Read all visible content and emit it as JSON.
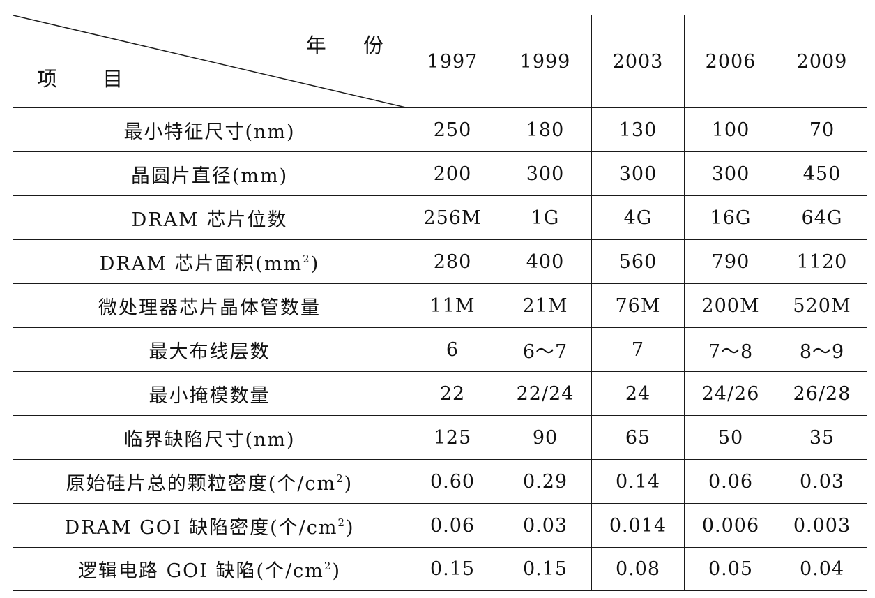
{
  "table": {
    "corner_top": "年 份",
    "corner_bottom": "项 目",
    "years": [
      "1997",
      "1999",
      "2003",
      "2006",
      "2009"
    ],
    "rows": [
      {
        "label": "最小特征尺寸(nm)",
        "values": [
          "250",
          "180",
          "130",
          "100",
          "70"
        ]
      },
      {
        "label": "晶圆片直径(mm)",
        "values": [
          "200",
          "300",
          "300",
          "300",
          "450"
        ]
      },
      {
        "label": "DRAM 芯片位数",
        "values": [
          "256M",
          "1G",
          "4G",
          "16G",
          "64G"
        ]
      },
      {
        "label": "DRAM 芯片面积(mm",
        "label_sup": "2",
        "label_suffix": ")",
        "values": [
          "280",
          "400",
          "560",
          "790",
          "1120"
        ]
      },
      {
        "label": "微处理器芯片晶体管数量",
        "values": [
          "11M",
          "21M",
          "76M",
          "200M",
          "520M"
        ]
      },
      {
        "label": "最大布线层数",
        "values": [
          "6",
          "6～7",
          "7",
          "7～8",
          "8～9"
        ]
      },
      {
        "label": "最小掩模数量",
        "values": [
          "22",
          "22/24",
          "24",
          "24/26",
          "26/28"
        ]
      },
      {
        "label": "临界缺陷尺寸(nm)",
        "values": [
          "125",
          "90",
          "65",
          "50",
          "35"
        ]
      },
      {
        "label": "原始硅片总的颗粒密度(个/cm",
        "label_sup": "2",
        "label_suffix": ")",
        "values": [
          "0.60",
          "0.29",
          "0.14",
          "0.06",
          "0.03"
        ]
      },
      {
        "label": "DRAM GOI 缺陷密度(个/cm",
        "label_sup": "2",
        "label_suffix": ")",
        "values": [
          "0.06",
          "0.03",
          "0.014",
          "0.006",
          "0.003"
        ]
      },
      {
        "label": "逻辑电路 GOI 缺陷(个/cm",
        "label_sup": "2",
        "label_suffix": ")",
        "values": [
          "0.15",
          "0.15",
          "0.08",
          "0.05",
          "0.04"
        ]
      }
    ]
  }
}
